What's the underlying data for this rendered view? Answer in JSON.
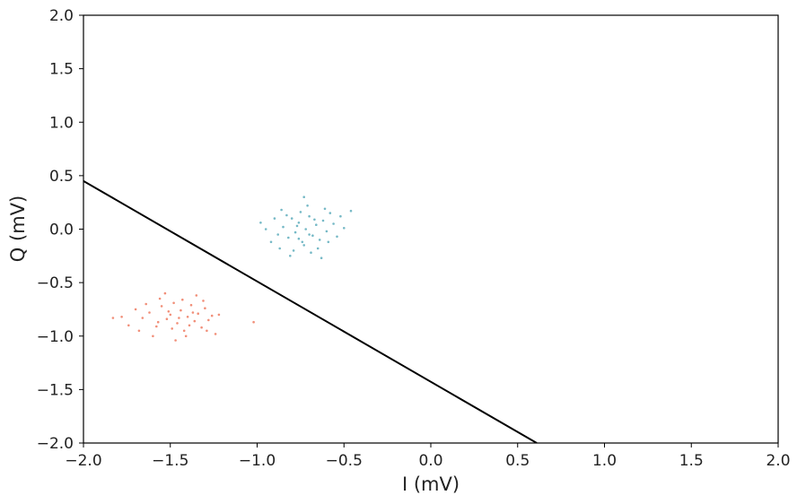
{
  "chart_data": {
    "type": "scatter",
    "title": "",
    "xlabel": "I (mV)",
    "ylabel": "Q (mV)",
    "xlim": [
      -2.0,
      2.0
    ],
    "ylim": [
      -2.0,
      2.0
    ],
    "xticks": [
      "−2.0",
      "−1.5",
      "−1.0",
      "−0.5",
      "0.0",
      "0.5",
      "1.0",
      "1.5",
      "2.0"
    ],
    "yticks": [
      "−2.0",
      "−1.5",
      "−1.0",
      "−0.5",
      "0.0",
      "0.5",
      "1.0",
      "1.5",
      "2.0"
    ],
    "grid": false,
    "legend": "none",
    "series": [
      {
        "color": "#e8441f",
        "points": [
          [
            -1.62,
            -0.78
          ],
          [
            -1.58,
            -0.91
          ],
          [
            -1.55,
            -0.72
          ],
          [
            -1.52,
            -0.84
          ],
          [
            -1.5,
            -0.8
          ],
          [
            -1.48,
            -0.69
          ],
          [
            -1.46,
            -0.88
          ],
          [
            -1.44,
            -0.76
          ],
          [
            -1.42,
            -0.95
          ],
          [
            -1.4,
            -0.82
          ],
          [
            -1.38,
            -0.71
          ],
          [
            -1.36,
            -0.86
          ],
          [
            -1.34,
            -0.79
          ],
          [
            -1.32,
            -0.92
          ],
          [
            -1.3,
            -0.74
          ],
          [
            -1.28,
            -0.85
          ],
          [
            -1.26,
            -0.81
          ],
          [
            -1.66,
            -0.83
          ],
          [
            -1.7,
            -0.75
          ],
          [
            -1.6,
            -1.0
          ],
          [
            -1.47,
            -1.04
          ],
          [
            -1.35,
            -0.62
          ],
          [
            -1.53,
            -0.6
          ],
          [
            -1.24,
            -0.98
          ],
          [
            -1.74,
            -0.9
          ],
          [
            -1.43,
            -0.66
          ],
          [
            -1.57,
            -0.87
          ],
          [
            -1.49,
            -0.93
          ],
          [
            -1.39,
            -0.9
          ],
          [
            -1.31,
            -0.67
          ],
          [
            -1.64,
            -0.7
          ],
          [
            -1.45,
            -0.83
          ],
          [
            -1.51,
            -0.77
          ],
          [
            -1.37,
            -0.78
          ],
          [
            -1.22,
            -0.8
          ],
          [
            -1.78,
            -0.82
          ],
          [
            -1.56,
            -0.65
          ],
          [
            -1.41,
            -1.0
          ],
          [
            -1.29,
            -0.95
          ],
          [
            -1.68,
            -0.95
          ],
          [
            -1.02,
            -0.87
          ],
          [
            -1.83,
            -0.83
          ]
        ]
      },
      {
        "color": "#1a8aa0",
        "points": [
          [
            -0.85,
            0.02
          ],
          [
            -0.82,
            -0.08
          ],
          [
            -0.8,
            0.1
          ],
          [
            -0.78,
            -0.03
          ],
          [
            -0.76,
            0.06
          ],
          [
            -0.74,
            -0.12
          ],
          [
            -0.72,
            0.0
          ],
          [
            -0.7,
            0.12
          ],
          [
            -0.68,
            -0.06
          ],
          [
            -0.66,
            0.04
          ],
          [
            -0.64,
            -0.1
          ],
          [
            -0.62,
            0.08
          ],
          [
            -0.6,
            -0.02
          ],
          [
            -0.58,
            0.15
          ],
          [
            -0.88,
            -0.05
          ],
          [
            -0.9,
            0.1
          ],
          [
            -0.86,
            0.18
          ],
          [
            -0.79,
            -0.2
          ],
          [
            -0.71,
            0.22
          ],
          [
            -0.65,
            -0.18
          ],
          [
            -0.56,
            0.05
          ],
          [
            -0.54,
            -0.07
          ],
          [
            -0.92,
            -0.12
          ],
          [
            -0.75,
            0.16
          ],
          [
            -0.69,
            -0.22
          ],
          [
            -0.83,
            0.13
          ],
          [
            -0.61,
            0.19
          ],
          [
            -0.73,
            -0.15
          ],
          [
            -0.77,
            0.03
          ],
          [
            -0.67,
            0.09
          ],
          [
            -0.5,
            0.01
          ],
          [
            -0.95,
            0.0
          ],
          [
            -0.81,
            -0.25
          ],
          [
            -0.63,
            -0.27
          ],
          [
            -0.73,
            0.3
          ],
          [
            -0.59,
            -0.12
          ],
          [
            -0.87,
            -0.18
          ],
          [
            -0.52,
            0.12
          ],
          [
            -0.7,
            -0.05
          ],
          [
            -0.76,
            -0.09
          ],
          [
            -0.46,
            0.17
          ],
          [
            -0.98,
            0.06
          ]
        ]
      }
    ],
    "lines": [
      {
        "color": "#000000",
        "points": [
          [
            -2.0,
            0.45
          ],
          [
            0.61,
            -2.0
          ]
        ]
      }
    ]
  }
}
